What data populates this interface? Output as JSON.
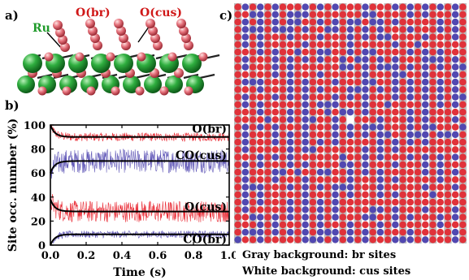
{
  "panel_a": {
    "letter": "a)",
    "labels": {
      "ru": "Ru",
      "o_br": "O(br)",
      "o_cus": "O(cus)"
    },
    "colors": {
      "ru": "#2fae3f",
      "oxygen": "#d84b57",
      "label_o": "#d01818",
      "label_ru": "#1f9a2a"
    }
  },
  "panel_b": {
    "letter": "b)",
    "chart_data": {
      "type": "line",
      "xlabel": "Time  (s)",
      "ylabel": "Site occ. number (%)",
      "xlim": [
        0,
        1.0
      ],
      "ylim": [
        0,
        100
      ],
      "xticks": [
        "0.0",
        "0.2",
        "0.4",
        "0.6",
        "0.8",
        "1.0"
      ],
      "yticks": [
        "0",
        "20",
        "40",
        "60",
        "80",
        "100"
      ],
      "grid": false,
      "series": [
        {
          "name": "O(br)",
          "color": "#e8202a",
          "mean": 90,
          "start": 100,
          "noise": 4
        },
        {
          "name": "CO(cus)",
          "color": "#5a50b4",
          "mean": 70,
          "start": 60,
          "noise": 10
        },
        {
          "name": "O(cus)",
          "color": "#e8202a",
          "mean": 28,
          "start": 38,
          "noise": 10
        },
        {
          "name": "CO(br)",
          "color": "#5a50b4",
          "mean": 9,
          "start": 0,
          "noise": 3
        }
      ]
    }
  },
  "panel_c": {
    "letter": "c)",
    "colors": {
      "o": "#e0323a",
      "co": "#5148b0",
      "bg_br": "#bdbdbd",
      "bg_cus": "#ffffff"
    },
    "caption_line1": "Gray background:  br sites",
    "caption_line2": "White background: cus sites"
  }
}
